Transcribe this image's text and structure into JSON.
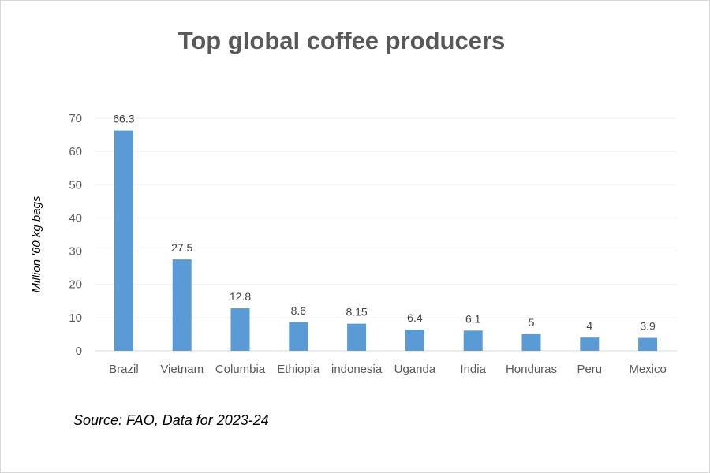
{
  "chart_data": {
    "type": "bar",
    "title": "Top global coffee producers",
    "xlabel": "",
    "ylabel": "Million '60 kg bags",
    "categories": [
      "Brazil",
      "Vietnam",
      "Columbia",
      "Ethiopia",
      "indonesia",
      "Uganda",
      "India",
      "Honduras",
      "Peru",
      "Mexico"
    ],
    "values": [
      66.3,
      27.5,
      12.8,
      8.6,
      8.15,
      6.4,
      6.1,
      5,
      4,
      3.9
    ],
    "data_labels": [
      "66.3",
      "27.5",
      "12.8",
      "8.6",
      "8.15",
      "6.4",
      "6.1",
      "5",
      "4",
      "3.9"
    ],
    "ylim": [
      0,
      70
    ],
    "yticks": [
      0,
      10,
      20,
      30,
      40,
      50,
      60,
      70
    ],
    "grid": true,
    "legend": "none",
    "bar_color": "#5b9bd5",
    "grid_color": "#efefef"
  },
  "source_note": "Source: FAO, Data for 2023-24"
}
